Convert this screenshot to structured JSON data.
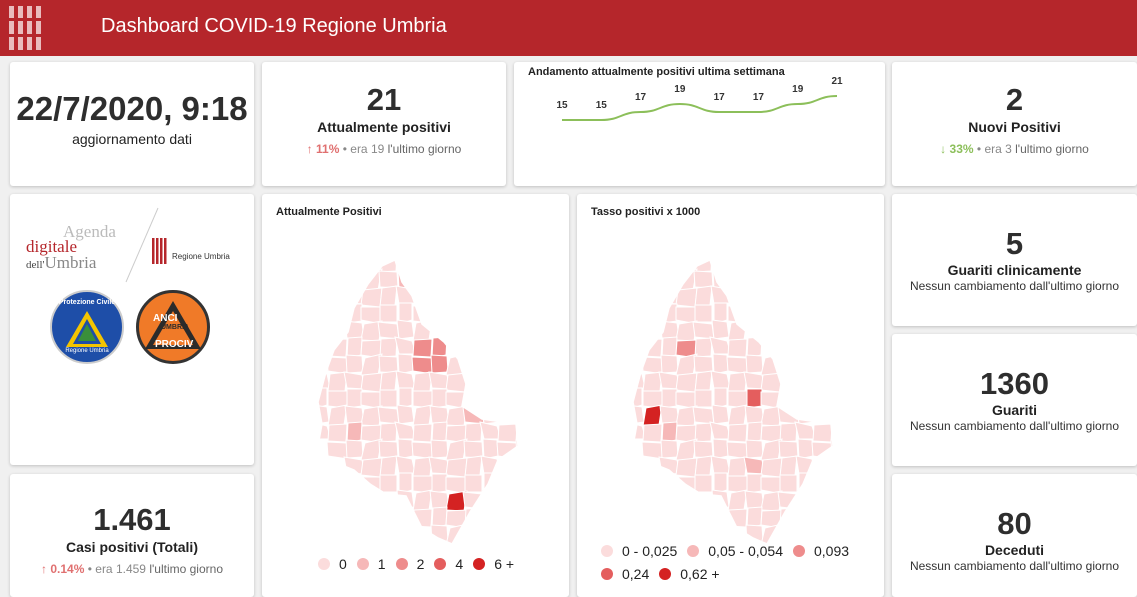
{
  "header": {
    "title": "Dashboard COVID-19 Regione Umbria"
  },
  "update": {
    "datetime": "22/7/2020, 9:18",
    "label": "aggiornamento dati"
  },
  "attualmente_positivi": {
    "value": "21",
    "label": "Attualmente positivi",
    "pct": "11%",
    "prev": "era 19",
    "suffix": "l'ultimo giorno"
  },
  "trend": {
    "title": "Andamento attualmente positivi ultima settimana",
    "chart_data": {
      "type": "line",
      "values": [
        15,
        15,
        17,
        19,
        17,
        17,
        19,
        21
      ],
      "title": "Andamento attualmente positivi ultima settimana"
    }
  },
  "nuovi_positivi": {
    "value": "2",
    "label": "Nuovi Positivi",
    "pct": "33%",
    "prev": "era 3",
    "suffix": "l'ultimo giorno"
  },
  "logos": {
    "agenda_line1": "Agenda",
    "agenda_line2": "digitale",
    "agenda_line3a": "dell'",
    "agenda_line3b": "Umbria",
    "regione": "Regione Umbria",
    "protezione_ring": "Protezione Civile",
    "protezione_bottom": "Regione Umbria",
    "anci_line1": "ANCI",
    "anci_line2": "UMBRIA",
    "anci_line3": "PROCIV"
  },
  "map_positivi": {
    "title": "Attualmente Positivi",
    "legend": [
      "0",
      "1",
      "2",
      "4",
      "6 +"
    ]
  },
  "map_tasso": {
    "title": "Tasso positivi x 1000",
    "legend": [
      "0 - 0,025",
      "0,05 - 0,054",
      "0,093",
      "0,24",
      "0,62 +"
    ]
  },
  "colors": {
    "header": "#b5262b",
    "l0": "#fbdcdc",
    "l1": "#f6b8b8",
    "l2": "#ee8c8c",
    "l3": "#e45e5e",
    "l4": "#d42222",
    "trend_line": "#8cbf5a"
  },
  "guariti_clinicamente": {
    "value": "5",
    "label": "Guariti clinicamente",
    "sub": "Nessun cambiamento dall'ultimo giorno"
  },
  "guariti": {
    "value": "1360",
    "label": "Guariti",
    "sub": "Nessun cambiamento dall'ultimo giorno"
  },
  "deceduti": {
    "value": "80",
    "label": "Deceduti",
    "sub": "Nessun cambiamento dall'ultimo giorno"
  },
  "casi_totali": {
    "value": "1.461",
    "label": "Casi positivi (Totali)",
    "pct": "0.14%",
    "prev": "era 1.459",
    "suffix": "l'ultimo giorno"
  }
}
